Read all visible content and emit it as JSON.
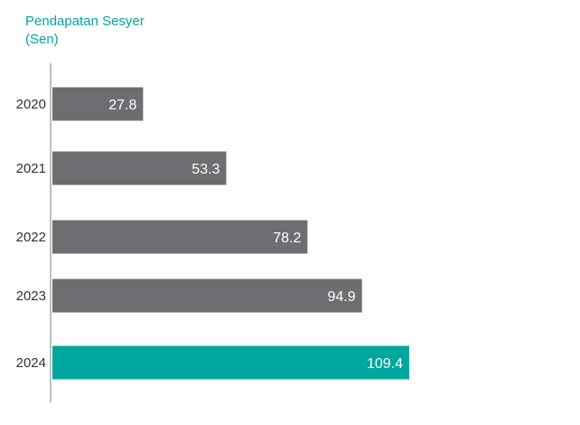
{
  "chart_data": {
    "type": "bar",
    "orientation": "horizontal",
    "title": "Pendapatan Sesyer",
    "subtitle": "(Sen)",
    "categories": [
      "2020",
      "2021",
      "2022",
      "2023",
      "2024"
    ],
    "values": [
      27.8,
      53.3,
      78.2,
      94.9,
      109.4
    ],
    "value_labels": [
      "27.8",
      "53.3",
      "78.2",
      "94.9",
      "109.4"
    ],
    "colors": {
      "default_bar": "#6D6E71",
      "highlight_bar": "#00A79D",
      "axis": "#BCBEC0",
      "title": "#00A79D"
    },
    "highlight_category": "2024",
    "xlim": [
      0,
      109.4
    ],
    "grid": false,
    "legend": "none"
  }
}
